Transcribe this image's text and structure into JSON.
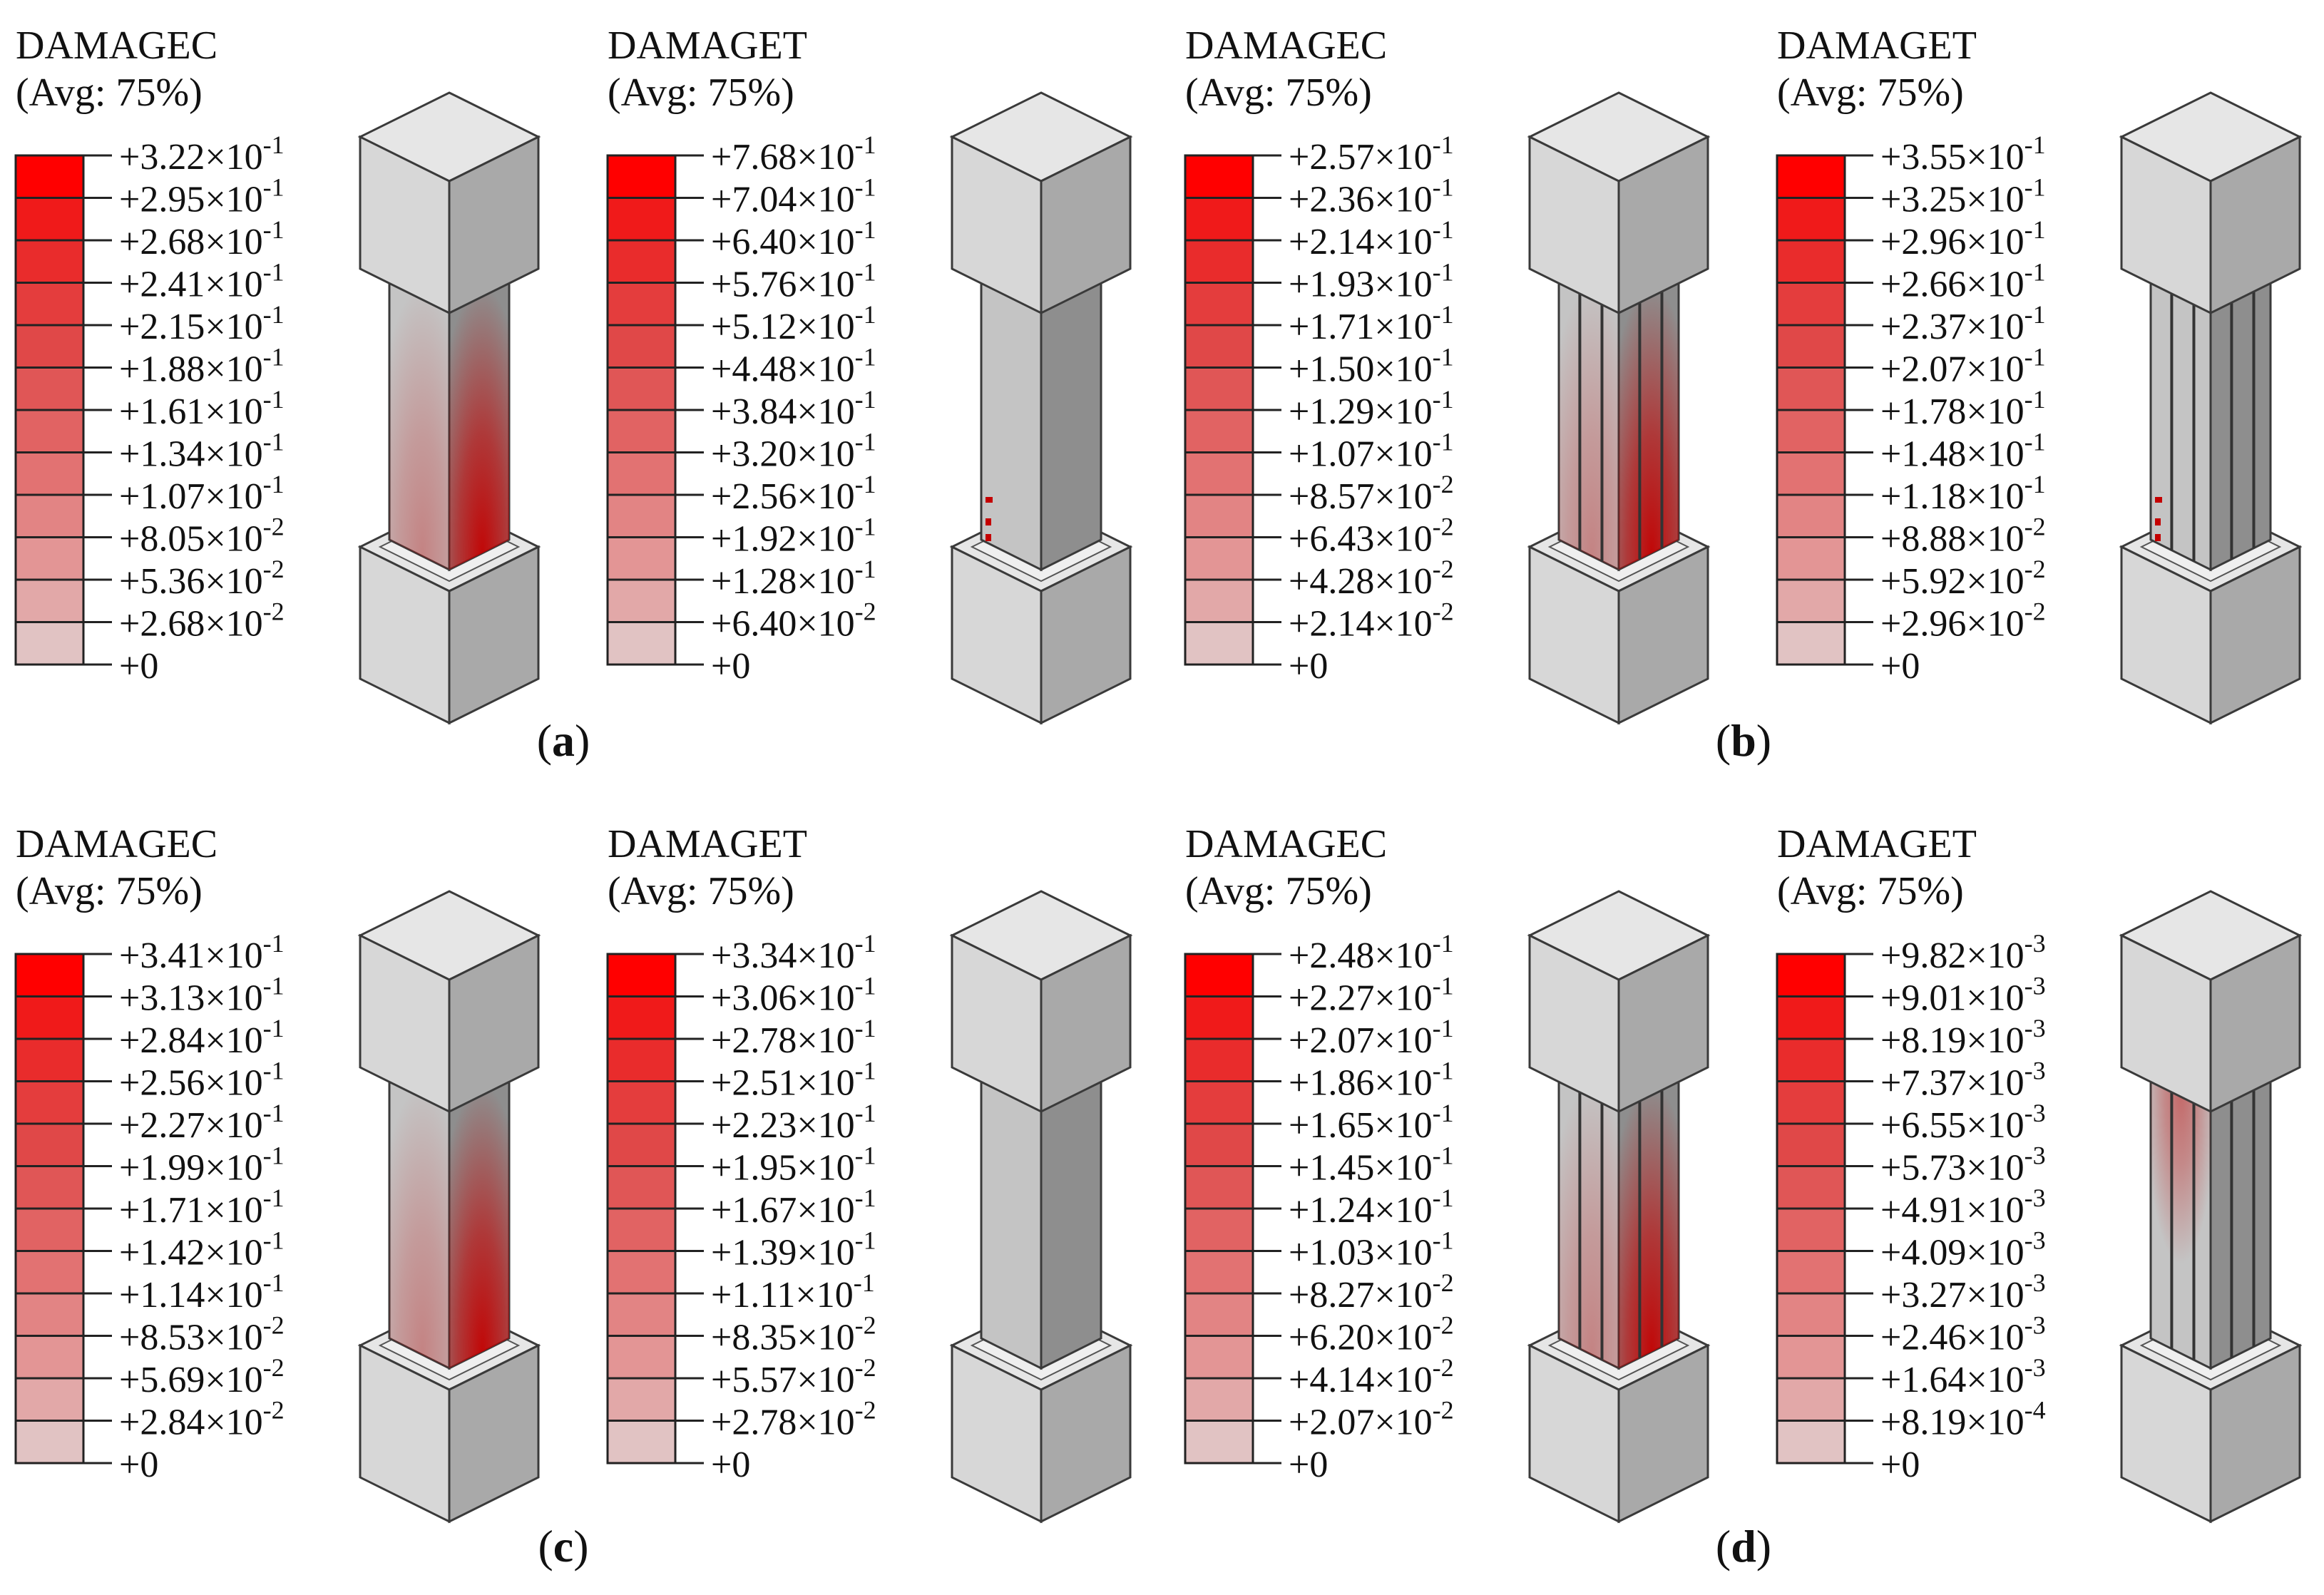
{
  "panels": [
    {
      "letter": "a",
      "caption": [
        "(",
        "a",
        ")"
      ],
      "column_type": "plain",
      "plots": [
        {
          "variable": "DAMAGEC",
          "avg_label": "(Avg: 75%)",
          "legend_values": [
            "+3.22×10^-1",
            "+2.95×10^-1",
            "+2.68×10^-1",
            "+2.41×10^-1",
            "+2.15×10^-1",
            "+1.88×10^-1",
            "+1.61×10^-1",
            "+1.34×10^-1",
            "+1.07×10^-1",
            "+8.05×10^-2",
            "+5.36×10^-2",
            "+2.68×10^-2",
            "+0"
          ],
          "damage_pattern": "compression-glow"
        },
        {
          "variable": "DAMAGET",
          "avg_label": "(Avg: 75%)",
          "legend_values": [
            "+7.68×10^-1",
            "+7.04×10^-1",
            "+6.40×10^-1",
            "+5.76×10^-1",
            "+5.12×10^-1",
            "+4.48×10^-1",
            "+3.84×10^-1",
            "+3.20×10^-1",
            "+2.56×10^-1",
            "+1.92×10^-1",
            "+1.28×10^-1",
            "+6.40×10^-2",
            "+0"
          ],
          "damage_pattern": "tension-spots"
        }
      ]
    },
    {
      "letter": "b",
      "caption": [
        "(",
        "b",
        ")"
      ],
      "column_type": "grooved",
      "plots": [
        {
          "variable": "DAMAGEC",
          "avg_label": "(Avg: 75%)",
          "legend_values": [
            "+2.57×10^-1",
            "+2.36×10^-1",
            "+2.14×10^-1",
            "+1.93×10^-1",
            "+1.71×10^-1",
            "+1.50×10^-1",
            "+1.29×10^-1",
            "+1.07×10^-1",
            "+8.57×10^-2",
            "+6.43×10^-2",
            "+4.28×10^-2",
            "+2.14×10^-2",
            "+0"
          ],
          "damage_pattern": "compression-glow"
        },
        {
          "variable": "DAMAGET",
          "avg_label": "(Avg: 75%)",
          "legend_values": [
            "+3.55×10^-1",
            "+3.25×10^-1",
            "+2.96×10^-1",
            "+2.66×10^-1",
            "+2.37×10^-1",
            "+2.07×10^-1",
            "+1.78×10^-1",
            "+1.48×10^-1",
            "+1.18×10^-1",
            "+8.88×10^-2",
            "+5.92×10^-2",
            "+2.96×10^-2",
            "+0"
          ],
          "damage_pattern": "tension-spots"
        }
      ]
    },
    {
      "letter": "c",
      "caption": [
        "(",
        "c",
        ")"
      ],
      "column_type": "plain",
      "plots": [
        {
          "variable": "DAMAGEC",
          "avg_label": "(Avg: 75%)",
          "legend_values": [
            "+3.41×10^-1",
            "+3.13×10^-1",
            "+2.84×10^-1",
            "+2.56×10^-1",
            "+2.27×10^-1",
            "+1.99×10^-1",
            "+1.71×10^-1",
            "+1.42×10^-1",
            "+1.14×10^-1",
            "+8.53×10^-2",
            "+5.69×10^-2",
            "+2.84×10^-2",
            "+0"
          ],
          "damage_pattern": "compression-glow"
        },
        {
          "variable": "DAMAGET",
          "avg_label": "(Avg: 75%)",
          "legend_values": [
            "+3.34×10^-1",
            "+3.06×10^-1",
            "+2.78×10^-1",
            "+2.51×10^-1",
            "+2.23×10^-1",
            "+1.95×10^-1",
            "+1.67×10^-1",
            "+1.39×10^-1",
            "+1.11×10^-1",
            "+8.35×10^-2",
            "+5.57×10^-2",
            "+2.78×10^-2",
            "+0"
          ],
          "damage_pattern": "none"
        }
      ]
    },
    {
      "letter": "d",
      "caption": [
        "(",
        "d",
        ")"
      ],
      "column_type": "grooved",
      "plots": [
        {
          "variable": "DAMAGEC",
          "avg_label": "(Avg: 75%)",
          "legend_values": [
            "+2.48×10^-1",
            "+2.27×10^-1",
            "+2.07×10^-1",
            "+1.86×10^-1",
            "+1.65×10^-1",
            "+1.45×10^-1",
            "+1.24×10^-1",
            "+1.03×10^-1",
            "+8.27×10^-2",
            "+6.20×10^-2",
            "+4.14×10^-2",
            "+2.07×10^-2",
            "+0"
          ],
          "damage_pattern": "compression-glow"
        },
        {
          "variable": "DAMAGET",
          "avg_label": "(Avg: 75%)",
          "legend_values": [
            "+9.82×10^-3",
            "+9.01×10^-3",
            "+8.19×10^-3",
            "+7.37×10^-3",
            "+6.55×10^-3",
            "+5.73×10^-3",
            "+4.91×10^-3",
            "+4.09×10^-3",
            "+3.27×10^-3",
            "+2.46×10^-3",
            "+1.64×10^-3",
            "+8.19×10^-4",
            "+0"
          ],
          "damage_pattern": "top-spot"
        }
      ]
    }
  ],
  "legend_colors": [
    "#ff0000",
    "#f01a1a",
    "#e92c2c",
    "#e43d3d",
    "#e04848",
    "#e05656",
    "#e16363",
    "#e27272",
    "#e28484",
    "#e39595",
    "#e2a8a8",
    "#e1c3c3",
    "#d9d9d9"
  ],
  "palette": {
    "damage_red": "#c40000",
    "concrete_light": "#e4e4e4",
    "concrete_face": "#c0c0c0",
    "concrete_dark": "#9a9a9a"
  }
}
